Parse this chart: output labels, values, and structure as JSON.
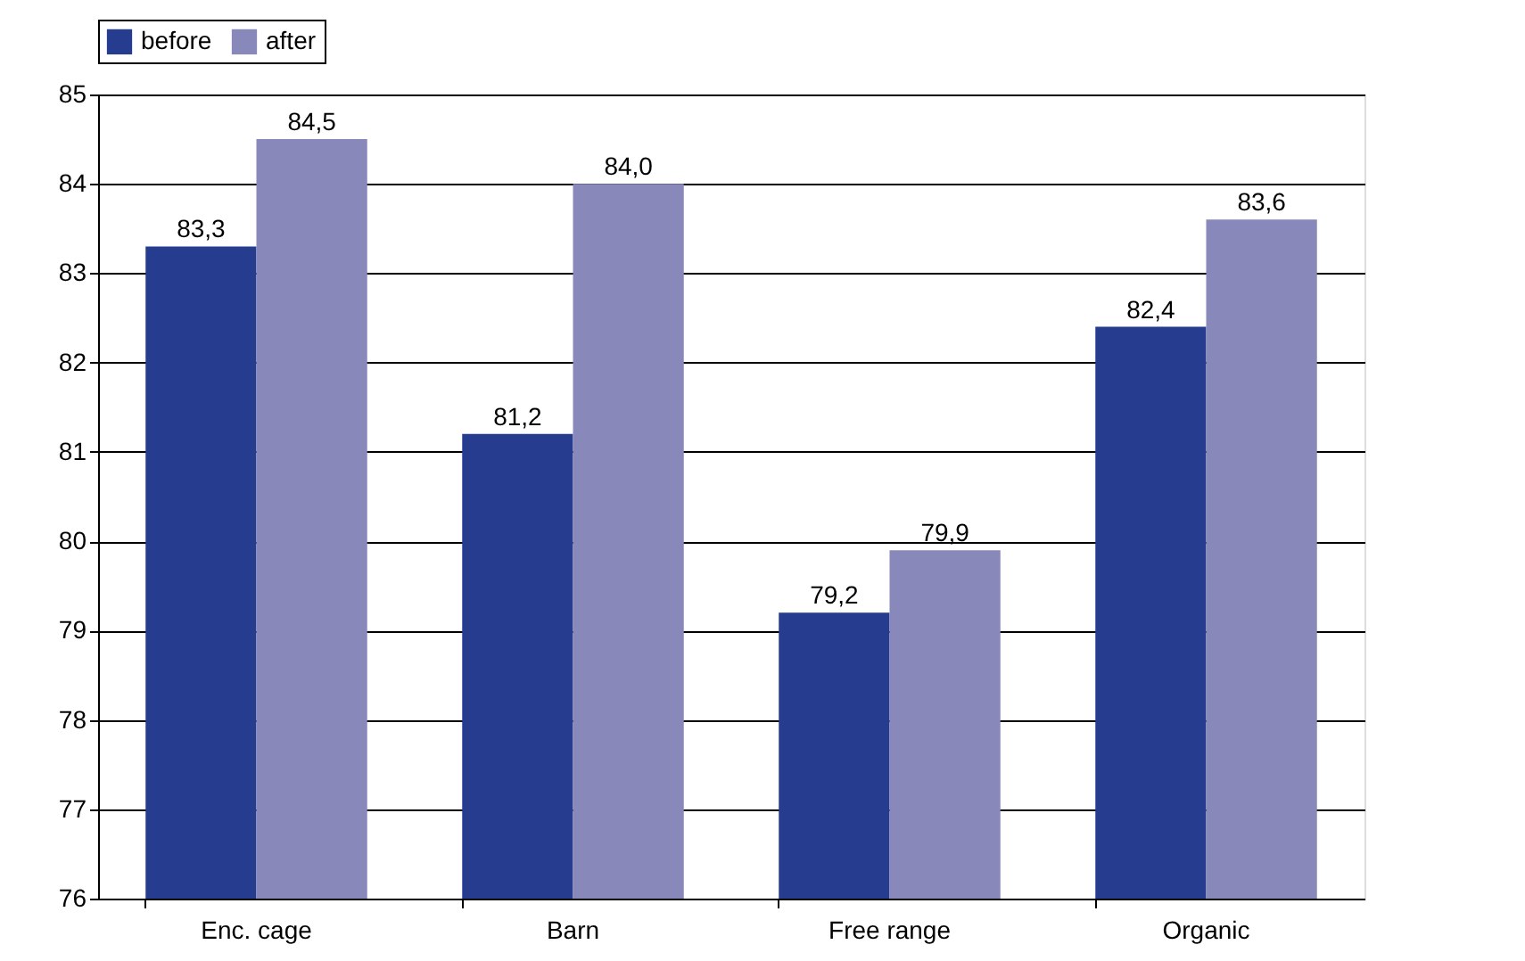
{
  "chart_data": {
    "type": "bar",
    "categories": [
      "Enc. cage",
      "Barn",
      "Free range",
      "Organic"
    ],
    "series": [
      {
        "name": "before",
        "color": "#253c8f",
        "values": [
          83.3,
          81.2,
          79.2,
          82.4
        ],
        "value_labels": [
          "83,3",
          "81,2",
          "79,2",
          "82,4"
        ]
      },
      {
        "name": "after",
        "color": "#8888bb",
        "values": [
          84.5,
          84.0,
          79.9,
          83.6
        ],
        "value_labels": [
          "84,5",
          "84,0",
          "79,9",
          "83,6"
        ]
      }
    ],
    "ylim": [
      76,
      85
    ],
    "yticks": [
      76,
      77,
      78,
      79,
      80,
      81,
      82,
      83,
      84,
      85
    ],
    "grid": "y",
    "legend": "top"
  }
}
